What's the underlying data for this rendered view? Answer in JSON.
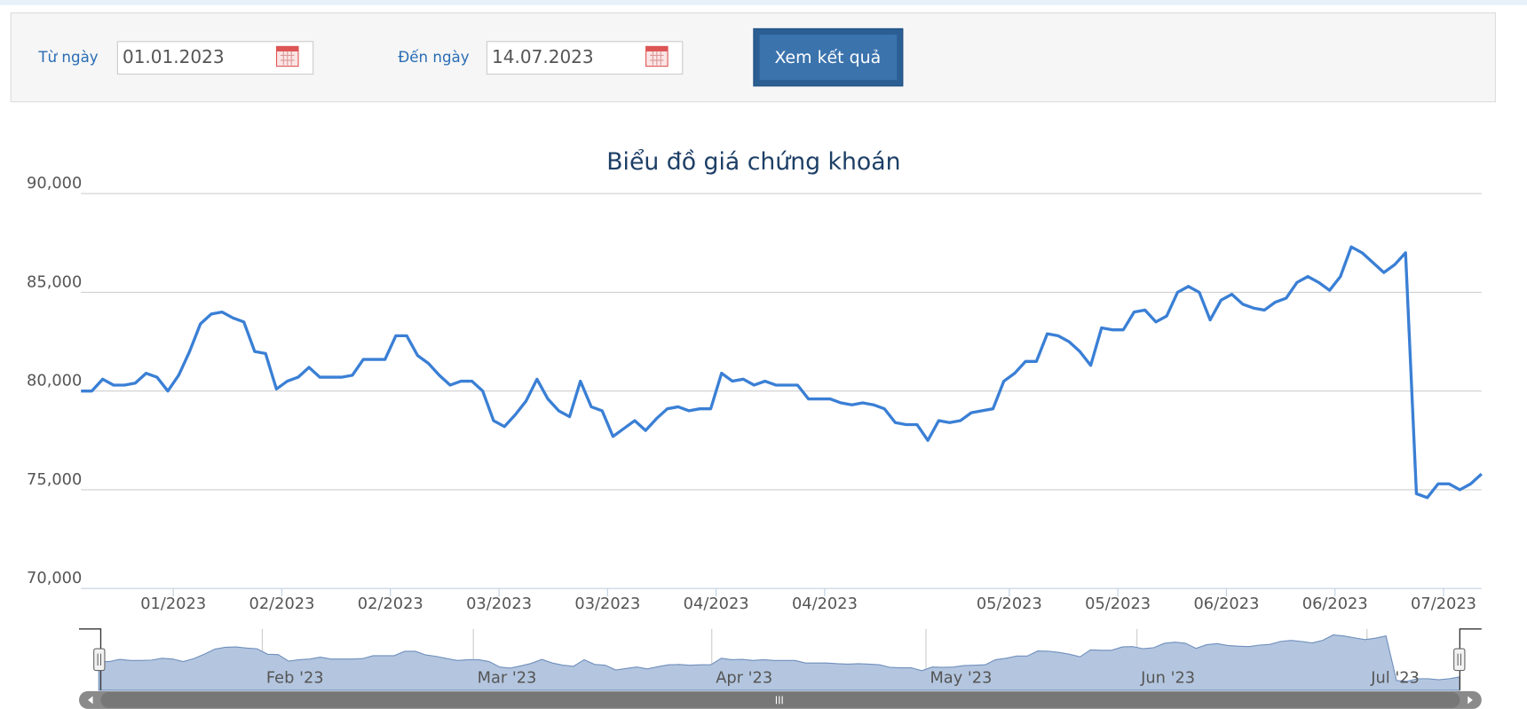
{
  "form": {
    "from_label": "Từ ngày",
    "from_value": "01.01.2023",
    "to_label": "Đến ngày",
    "to_value": "14.07.2023",
    "button": "Xem kết quả"
  },
  "chart_data": {
    "type": "line",
    "title": "Biểu đồ giá chứng khoán",
    "color": "#3a7fd5",
    "grid": true,
    "ylim": [
      70000,
      90000
    ],
    "yticks": [
      {
        "value": 70000,
        "label": "70,000"
      },
      {
        "value": 75000,
        "label": "75,000"
      },
      {
        "value": 80000,
        "label": "80,000"
      },
      {
        "value": 85000,
        "label": "85,000"
      },
      {
        "value": 90000,
        "label": "90,000"
      }
    ],
    "xlim": [
      0,
      129
    ],
    "xticks": [
      {
        "value": 8.5,
        "label": "01/2023"
      },
      {
        "value": 18.5,
        "label": "02/2023"
      },
      {
        "value": 28.5,
        "label": "02/2023"
      },
      {
        "value": 38.5,
        "label": "03/2023"
      },
      {
        "value": 48.5,
        "label": "03/2023"
      },
      {
        "value": 58.5,
        "label": "04/2023"
      },
      {
        "value": 68.5,
        "label": "04/2023"
      },
      {
        "value": 85.5,
        "label": "05/2023"
      },
      {
        "value": 95.5,
        "label": "05/2023"
      },
      {
        "value": 105.5,
        "label": "06/2023"
      },
      {
        "value": 115.5,
        "label": "06/2023"
      },
      {
        "value": 125.5,
        "label": "07/2023"
      }
    ],
    "values": [
      80000,
      80000,
      80600,
      80300,
      80300,
      80400,
      80900,
      80700,
      80000,
      80800,
      82000,
      83400,
      83900,
      84000,
      83700,
      83500,
      82000,
      81900,
      80100,
      80500,
      80700,
      81200,
      80700,
      80700,
      80700,
      80800,
      81600,
      81600,
      81600,
      82800,
      82800,
      81800,
      81400,
      80800,
      80300,
      80500,
      80500,
      80000,
      78500,
      78200,
      78800,
      79500,
      80600,
      79600,
      79000,
      78700,
      80500,
      79200,
      79000,
      77700,
      78100,
      78500,
      78000,
      78600,
      79100,
      79200,
      79000,
      79100,
      79100,
      80900,
      80500,
      80600,
      80300,
      80500,
      80300,
      80300,
      80300,
      79600,
      79600,
      79600,
      79400,
      79300,
      79400,
      79300,
      79100,
      78400,
      78300,
      78300,
      77500,
      78500,
      78400,
      78500,
      78900,
      79000,
      79100,
      80500,
      80900,
      81500,
      81500,
      82900,
      82800,
      82500,
      82000,
      81300,
      83200,
      83100,
      83100,
      84000,
      84100,
      83500,
      83800,
      85000,
      85300,
      85000,
      83600,
      84600,
      84900,
      84400,
      84200,
      84100,
      84500,
      84700,
      85500,
      85800,
      85500,
      85100,
      85800,
      87300,
      87000,
      86500,
      86000,
      86400,
      87000,
      74800,
      74600,
      75300,
      75300,
      75000,
      75300,
      75800
    ]
  },
  "navigator": {
    "type": "area",
    "xlim": [
      0,
      129
    ],
    "xticks": [
      {
        "value": 15.5,
        "label": "Feb '23"
      },
      {
        "value": 35.5,
        "label": "Mar '23"
      },
      {
        "value": 58.1,
        "label": "Apr '23"
      },
      {
        "value": 78.4,
        "label": "May '23"
      },
      {
        "value": 98.4,
        "label": "Jun '23"
      },
      {
        "value": 120.2,
        "label": "Jul '23"
      }
    ]
  }
}
